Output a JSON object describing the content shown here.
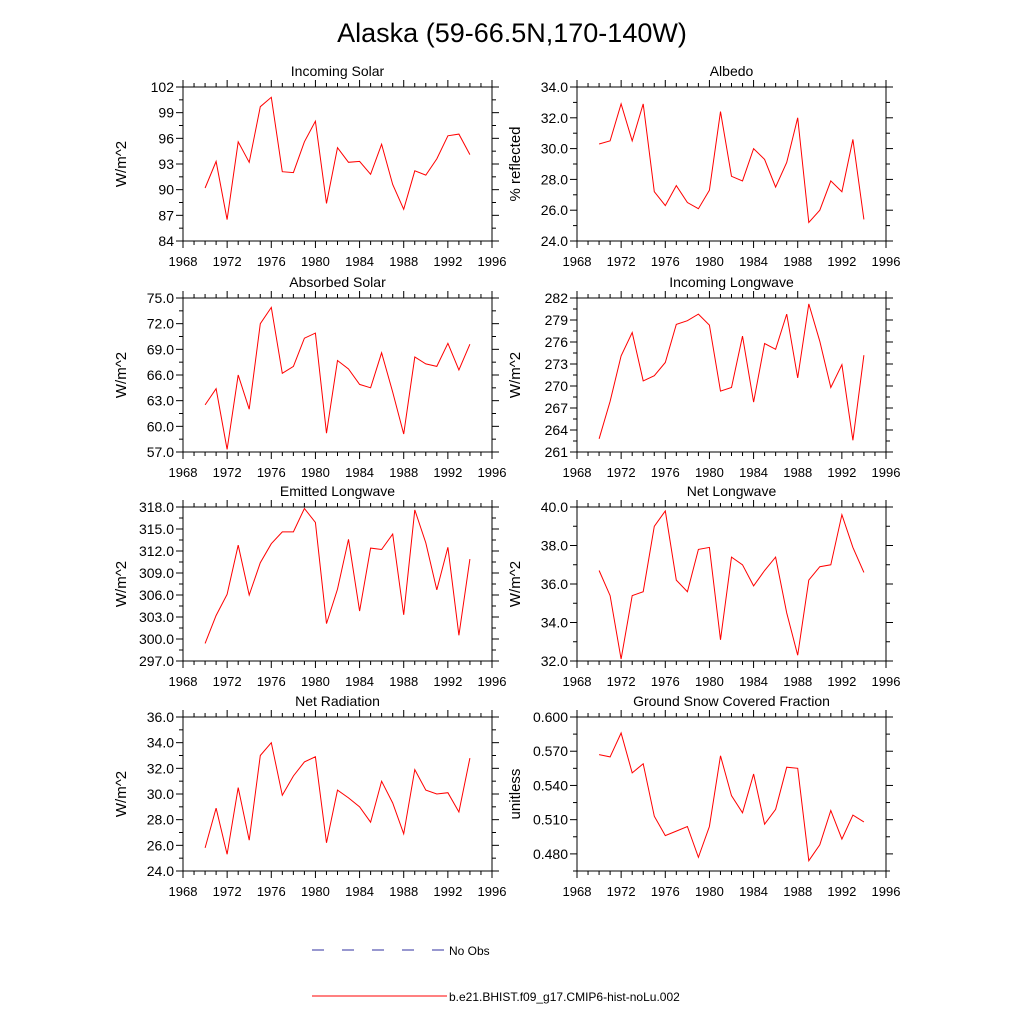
{
  "title": "Alaska (59-66.5N,170-140W)",
  "colors": {
    "model_line": "#ff0000",
    "obs_line": "#3030a0",
    "axis": "#000000"
  },
  "legend": {
    "obs_label": "No Obs",
    "model_label": "b.e21.BHIST.f09_g17.CMIP6-hist-noLu.002"
  },
  "chart_data": [
    {
      "type": "line",
      "title": "Incoming Solar",
      "ylabel": "W/m^2",
      "xlim": [
        1968,
        1996
      ],
      "ylim": [
        84,
        102
      ],
      "xticks": [
        1968,
        1972,
        1976,
        1980,
        1984,
        1988,
        1992,
        1996
      ],
      "xtick_labels": [
        "1968",
        "1972",
        "1976",
        "1980",
        "1984",
        "1988",
        "1992",
        "1996"
      ],
      "yticks": [
        84,
        87,
        90,
        93,
        96,
        99,
        102
      ],
      "ytick_labels": [
        "84",
        "87",
        "90",
        "93",
        "96",
        "99",
        "102"
      ],
      "x": [
        1970,
        1971,
        1972,
        1973,
        1974,
        1975,
        1976,
        1977,
        1978,
        1979,
        1980,
        1981,
        1982,
        1983,
        1984,
        1985,
        1986,
        1987,
        1988,
        1989,
        1990,
        1991,
        1992,
        1993,
        1994
      ],
      "series": [
        {
          "name": "b.e21.BHIST.f09_g17.CMIP6-hist-noLu.002",
          "values": [
            90.2,
            93.3,
            86.5,
            95.6,
            93.2,
            99.7,
            100.8,
            92.1,
            92.0,
            95.6,
            98.0,
            88.4,
            94.9,
            93.2,
            93.3,
            91.8,
            95.3,
            90.6,
            87.7,
            92.2,
            91.7,
            93.6,
            96.3,
            96.5,
            94.1
          ]
        }
      ]
    },
    {
      "type": "line",
      "title": "Albedo",
      "ylabel": "% reflected",
      "xlim": [
        1968,
        1996
      ],
      "ylim": [
        24,
        34
      ],
      "xticks": [
        1968,
        1972,
        1976,
        1980,
        1984,
        1988,
        1992,
        1996
      ],
      "xtick_labels": [
        "1968",
        "1972",
        "1976",
        "1980",
        "1984",
        "1988",
        "1992",
        "1996"
      ],
      "yticks": [
        24,
        26,
        28,
        30,
        32,
        34
      ],
      "ytick_labels": [
        "24.0",
        "26.0",
        "28.0",
        "30.0",
        "32.0",
        "34.0"
      ],
      "x": [
        1970,
        1971,
        1972,
        1973,
        1974,
        1975,
        1976,
        1977,
        1978,
        1979,
        1980,
        1981,
        1982,
        1983,
        1984,
        1985,
        1986,
        1987,
        1988,
        1989,
        1990,
        1991,
        1992,
        1993,
        1994
      ],
      "series": [
        {
          "name": "b.e21.BHIST.f09_g17.CMIP6-hist-noLu.002",
          "values": [
            30.3,
            30.5,
            32.9,
            30.5,
            32.9,
            27.2,
            26.3,
            27.6,
            26.5,
            26.1,
            27.3,
            32.4,
            28.2,
            27.9,
            30.0,
            29.3,
            27.5,
            29.1,
            32.0,
            25.2,
            26.0,
            27.9,
            27.2,
            30.6,
            25.4
          ]
        }
      ]
    },
    {
      "type": "line",
      "title": "Absorbed Solar",
      "ylabel": "W/m^2",
      "xlim": [
        1968,
        1996
      ],
      "ylim": [
        57,
        75
      ],
      "xticks": [
        1968,
        1972,
        1976,
        1980,
        1984,
        1988,
        1992,
        1996
      ],
      "xtick_labels": [
        "1968",
        "1972",
        "1976",
        "1980",
        "1984",
        "1988",
        "1992",
        "1996"
      ],
      "yticks": [
        57,
        60,
        63,
        66,
        69,
        72,
        75
      ],
      "ytick_labels": [
        "57.0",
        "60.0",
        "63.0",
        "66.0",
        "69.0",
        "72.0",
        "75.0"
      ],
      "x": [
        1970,
        1971,
        1972,
        1973,
        1974,
        1975,
        1976,
        1977,
        1978,
        1979,
        1980,
        1981,
        1982,
        1983,
        1984,
        1985,
        1986,
        1987,
        1988,
        1989,
        1990,
        1991,
        1992,
        1993,
        1994
      ],
      "series": [
        {
          "name": "b.e21.BHIST.f09_g17.CMIP6-hist-noLu.002",
          "values": [
            62.5,
            64.4,
            57.3,
            66.0,
            62.0,
            72.0,
            73.9,
            66.2,
            67.0,
            70.3,
            70.9,
            59.2,
            67.7,
            66.7,
            64.9,
            64.5,
            68.6,
            64.0,
            59.1,
            68.1,
            67.3,
            67.0,
            69.7,
            66.6,
            69.6
          ]
        }
      ]
    },
    {
      "type": "line",
      "title": "Incoming Longwave",
      "ylabel": "W/m^2",
      "xlim": [
        1968,
        1996
      ],
      "ylim": [
        261,
        282
      ],
      "xticks": [
        1968,
        1972,
        1976,
        1980,
        1984,
        1988,
        1992,
        1996
      ],
      "xtick_labels": [
        "1968",
        "1972",
        "1976",
        "1980",
        "1984",
        "1988",
        "1992",
        "1996"
      ],
      "yticks": [
        261,
        264,
        267,
        270,
        273,
        276,
        279,
        282
      ],
      "ytick_labels": [
        "261",
        "264",
        "267",
        "270",
        "273",
        "276",
        "279",
        "282"
      ],
      "x": [
        1970,
        1971,
        1972,
        1973,
        1974,
        1975,
        1976,
        1977,
        1978,
        1979,
        1980,
        1981,
        1982,
        1983,
        1984,
        1985,
        1986,
        1987,
        1988,
        1989,
        1990,
        1991,
        1992,
        1993,
        1994
      ],
      "series": [
        {
          "name": "b.e21.BHIST.f09_g17.CMIP6-hist-noLu.002",
          "values": [
            262.8,
            267.9,
            274.1,
            277.3,
            270.7,
            271.4,
            273.2,
            278.4,
            278.9,
            279.8,
            278.3,
            269.3,
            269.8,
            276.8,
            267.8,
            275.8,
            275.0,
            279.8,
            271.1,
            281.2,
            276.1,
            269.8,
            272.9,
            262.6,
            274.2
          ]
        }
      ]
    },
    {
      "type": "line",
      "title": "Emitted Longwave",
      "ylabel": "W/m^2",
      "xlim": [
        1968,
        1996
      ],
      "ylim": [
        297,
        318
      ],
      "xticks": [
        1968,
        1972,
        1976,
        1980,
        1984,
        1988,
        1992,
        1996
      ],
      "xtick_labels": [
        "1968",
        "1972",
        "1976",
        "1980",
        "1984",
        "1988",
        "1992",
        "1996"
      ],
      "yticks": [
        297,
        300,
        303,
        306,
        309,
        312,
        315,
        318
      ],
      "ytick_labels": [
        "297.0",
        "300.0",
        "303.0",
        "306.0",
        "309.0",
        "312.0",
        "315.0",
        "318.0"
      ],
      "x": [
        1970,
        1971,
        1972,
        1973,
        1974,
        1975,
        1976,
        1977,
        1978,
        1979,
        1980,
        1981,
        1982,
        1983,
        1984,
        1985,
        1986,
        1987,
        1988,
        1989,
        1990,
        1991,
        1992,
        1993,
        1994
      ],
      "series": [
        {
          "name": "b.e21.BHIST.f09_g17.CMIP6-hist-noLu.002",
          "values": [
            299.4,
            303.2,
            306.1,
            312.8,
            306.0,
            310.4,
            313.0,
            314.6,
            314.6,
            317.8,
            315.9,
            302.1,
            306.8,
            313.6,
            303.8,
            312.4,
            312.2,
            314.3,
            303.3,
            317.6,
            313.1,
            306.7,
            312.5,
            300.5,
            310.9
          ]
        }
      ]
    },
    {
      "type": "line",
      "title": "Net Longwave",
      "ylabel": "W/m^2",
      "xlim": [
        1968,
        1996
      ],
      "ylim": [
        32,
        40
      ],
      "xticks": [
        1968,
        1972,
        1976,
        1980,
        1984,
        1988,
        1992,
        1996
      ],
      "xtick_labels": [
        "1968",
        "1972",
        "1976",
        "1980",
        "1984",
        "1988",
        "1992",
        "1996"
      ],
      "yticks": [
        32,
        34,
        36,
        38,
        40
      ],
      "ytick_labels": [
        "32.0",
        "34.0",
        "36.0",
        "38.0",
        "40.0"
      ],
      "x": [
        1970,
        1971,
        1972,
        1973,
        1974,
        1975,
        1976,
        1977,
        1978,
        1979,
        1980,
        1981,
        1982,
        1983,
        1984,
        1985,
        1986,
        1987,
        1988,
        1989,
        1990,
        1991,
        1992,
        1993,
        1994
      ],
      "series": [
        {
          "name": "b.e21.BHIST.f09_g17.CMIP6-hist-noLu.002",
          "values": [
            36.7,
            35.4,
            32.1,
            35.4,
            35.6,
            39.0,
            39.8,
            36.2,
            35.6,
            37.8,
            37.9,
            33.1,
            37.4,
            37.0,
            35.9,
            36.7,
            37.4,
            34.5,
            32.3,
            36.2,
            36.9,
            37.0,
            39.6,
            37.9,
            36.6
          ]
        }
      ]
    },
    {
      "type": "line",
      "title": "Net Radiation",
      "ylabel": "W/m^2",
      "xlim": [
        1968,
        1996
      ],
      "ylim": [
        24,
        36
      ],
      "xticks": [
        1968,
        1972,
        1976,
        1980,
        1984,
        1988,
        1992,
        1996
      ],
      "xtick_labels": [
        "1968",
        "1972",
        "1976",
        "1980",
        "1984",
        "1988",
        "1992",
        "1996"
      ],
      "yticks": [
        24,
        26,
        28,
        30,
        32,
        34,
        36
      ],
      "ytick_labels": [
        "24.0",
        "26.0",
        "28.0",
        "30.0",
        "32.0",
        "34.0",
        "36.0"
      ],
      "x": [
        1970,
        1971,
        1972,
        1973,
        1974,
        1975,
        1976,
        1977,
        1978,
        1979,
        1980,
        1981,
        1982,
        1983,
        1984,
        1985,
        1986,
        1987,
        1988,
        1989,
        1990,
        1991,
        1992,
        1993,
        1994
      ],
      "series": [
        {
          "name": "b.e21.BHIST.f09_g17.CMIP6-hist-noLu.002",
          "values": [
            25.8,
            28.9,
            25.3,
            30.5,
            26.4,
            33.0,
            34.0,
            29.9,
            31.4,
            32.5,
            32.9,
            26.2,
            30.3,
            29.7,
            29.0,
            27.8,
            31.0,
            29.3,
            26.9,
            31.9,
            30.3,
            30.0,
            30.1,
            28.6,
            32.8
          ]
        }
      ]
    },
    {
      "type": "line",
      "title": "Ground Snow Covered Fraction",
      "ylabel": "unitless",
      "xlim": [
        1968,
        1996
      ],
      "ylim": [
        0.465,
        0.6
      ],
      "xticks": [
        1968,
        1972,
        1976,
        1980,
        1984,
        1988,
        1992,
        1996
      ],
      "xtick_labels": [
        "1968",
        "1972",
        "1976",
        "1980",
        "1984",
        "1988",
        "1992",
        "1996"
      ],
      "yticks": [
        0.48,
        0.51,
        0.54,
        0.57,
        0.6
      ],
      "ytick_labels": [
        "0.480",
        "0.510",
        "0.540",
        "0.570",
        "0.600"
      ],
      "x": [
        1970,
        1971,
        1972,
        1973,
        1974,
        1975,
        1976,
        1977,
        1978,
        1979,
        1980,
        1981,
        1982,
        1983,
        1984,
        1985,
        1986,
        1987,
        1988,
        1989,
        1990,
        1991,
        1992,
        1993,
        1994
      ],
      "series": [
        {
          "name": "b.e21.BHIST.f09_g17.CMIP6-hist-noLu.002",
          "values": [
            0.567,
            0.565,
            0.586,
            0.551,
            0.559,
            0.513,
            0.496,
            0.5,
            0.504,
            0.477,
            0.504,
            0.566,
            0.531,
            0.516,
            0.55,
            0.506,
            0.519,
            0.556,
            0.555,
            0.474,
            0.488,
            0.518,
            0.493,
            0.514,
            0.508
          ]
        }
      ]
    }
  ]
}
